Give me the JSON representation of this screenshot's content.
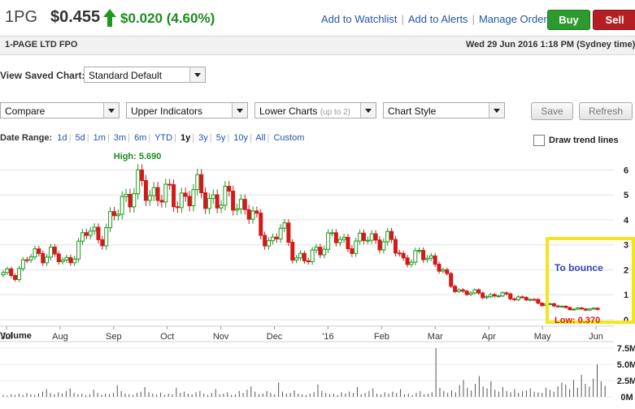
{
  "header": {
    "ticker": "1PG",
    "price": "$0.455",
    "change": "$0.020 (4.60%)",
    "links": [
      "Add to Watchlist",
      "Add to Alerts",
      "Manage Orders"
    ],
    "buy_label": "Buy",
    "sell_label": "Sell"
  },
  "subheader": {
    "company": "1-PAGE LTD FPO",
    "datetime": "Wed 29 Jun 2016 1:18 PM (Sydney time)"
  },
  "saved_chart": {
    "label": "View Saved Chart:",
    "selected": "Standard Default"
  },
  "toolbar": {
    "compare": "Compare",
    "upper_indicators": "Upper Indicators",
    "lower_charts": "Lower Charts",
    "lower_charts_hint": "(up to 2)",
    "chart_style": "Chart Style",
    "save_label": "Save",
    "refresh_label": "Refresh"
  },
  "date_range": {
    "label": "Date Range:",
    "options": [
      "1d",
      "5d",
      "1m",
      "3m",
      "6m",
      "YTD",
      "1y",
      "3y",
      "5y",
      "10y",
      "All",
      "Custom"
    ],
    "active": "1y"
  },
  "draw_trend_lines": "Draw trend lines",
  "colors": {
    "up": "#1d9a1d",
    "down": "#d21a1a",
    "highlight": "#f5e51a",
    "link": "#2255aa"
  },
  "chart_data": {
    "type": "candlestick",
    "months": [
      "Jul",
      "Aug",
      "Sep",
      "Oct",
      "Nov",
      "Dec",
      "'16",
      "Feb",
      "Mar",
      "Apr",
      "May",
      "Jun"
    ],
    "price_axis": [
      0,
      1,
      2,
      3,
      4,
      5,
      6
    ],
    "ylim": [
      0,
      6.5
    ],
    "high_label": "High: 5.690",
    "low_label": "Low: 0.370",
    "annotation": "To bounce",
    "volume_title": "Volume",
    "volume_axis": [
      "0M",
      "2.5M",
      "5.0M",
      "7.5M"
    ],
    "volume_max": 7.5,
    "close_path": [
      [
        0,
        1.8
      ],
      [
        10,
        1.85
      ],
      [
        20,
        2.5
      ],
      [
        30,
        2.6
      ],
      [
        40,
        2.7
      ],
      [
        50,
        2.2
      ],
      [
        60,
        2.8
      ],
      [
        70,
        3.6
      ],
      [
        80,
        3.3
      ],
      [
        90,
        4.0
      ],
      [
        100,
        4.9
      ],
      [
        110,
        5.4
      ],
      [
        120,
        5.0
      ],
      [
        130,
        5.2
      ],
      [
        140,
        4.7
      ],
      [
        150,
        5.0
      ],
      [
        160,
        5.1
      ],
      [
        170,
        4.9
      ],
      [
        180,
        4.7
      ],
      [
        190,
        4.9
      ],
      [
        200,
        4.4
      ],
      [
        210,
        3.8
      ],
      [
        220,
        3.0
      ],
      [
        230,
        3.7
      ],
      [
        240,
        2.6
      ],
      [
        250,
        2.3
      ],
      [
        260,
        2.9
      ],
      [
        270,
        3.3
      ],
      [
        280,
        3.1
      ],
      [
        290,
        3.0
      ],
      [
        300,
        3.3
      ],
      [
        310,
        3.2
      ],
      [
        320,
        3.1
      ],
      [
        330,
        2.4
      ],
      [
        340,
        2.5
      ],
      [
        350,
        2.6
      ],
      [
        360,
        2.1
      ],
      [
        370,
        1.3
      ],
      [
        380,
        1.1
      ],
      [
        390,
        1.05
      ],
      [
        400,
        0.95
      ],
      [
        410,
        1.0
      ],
      [
        420,
        0.9
      ],
      [
        430,
        0.85
      ],
      [
        440,
        0.7
      ],
      [
        450,
        0.6
      ],
      [
        460,
        0.5
      ],
      [
        470,
        0.45
      ],
      [
        480,
        0.4
      ],
      [
        490,
        0.455
      ]
    ],
    "volume": [
      0.3,
      0.2,
      0.4,
      0.3,
      0.5,
      0.3,
      0.6,
      0.4,
      0.3,
      0.5,
      0.8,
      1.2,
      0.6,
      0.4,
      0.7,
      0.5,
      0.9,
      1.3,
      0.6,
      0.4,
      0.5,
      0.3,
      0.4,
      1.1,
      0.6,
      0.3,
      0.5,
      0.4,
      0.6,
      1.8,
      0.9,
      0.5,
      0.4,
      0.3,
      0.6,
      0.8,
      1.5,
      0.7,
      0.5,
      0.4,
      0.6,
      0.3,
      0.5,
      0.4,
      1.4,
      0.6,
      0.8,
      0.5,
      0.4,
      0.7,
      0.9,
      0.5,
      0.3,
      0.6,
      1.2,
      0.4,
      0.5,
      0.7,
      0.3,
      0.4,
      0.9,
      0.6,
      1.1,
      1.6,
      0.8,
      0.4,
      0.5,
      0.9,
      0.6,
      0.4,
      2.2,
      0.8,
      0.5,
      0.6,
      1.0,
      0.5,
      0.4,
      0.3,
      0.5,
      0.7,
      1.9,
      0.9,
      0.6,
      0.4,
      0.5,
      0.3,
      0.7,
      0.5,
      0.8,
      0.6,
      1.5,
      0.4,
      0.6,
      0.9,
      1.3,
      0.5,
      0.4,
      0.7,
      0.5,
      0.8,
      0.6,
      1.2,
      0.4,
      0.5,
      0.3,
      0.6,
      0.9,
      0.4,
      0.5,
      0.7,
      7.5,
      1.4,
      0.9,
      0.6,
      1.0,
      0.7,
      1.8,
      2.6,
      1.4,
      1.0,
      2.0,
      3.2,
      1.6,
      1.3,
      2.4,
      1.1,
      0.8,
      1.5,
      0.9,
      0.7,
      1.2,
      0.6,
      0.9,
      1.0,
      1.3,
      0.8,
      0.7,
      0.6,
      1.4,
      1.1,
      0.8,
      1.6,
      2.2,
      1.9,
      1.2,
      2.6,
      1.4,
      3.4,
      2.0,
      1.6,
      2.8,
      5.0,
      2.4,
      1.7
    ]
  }
}
